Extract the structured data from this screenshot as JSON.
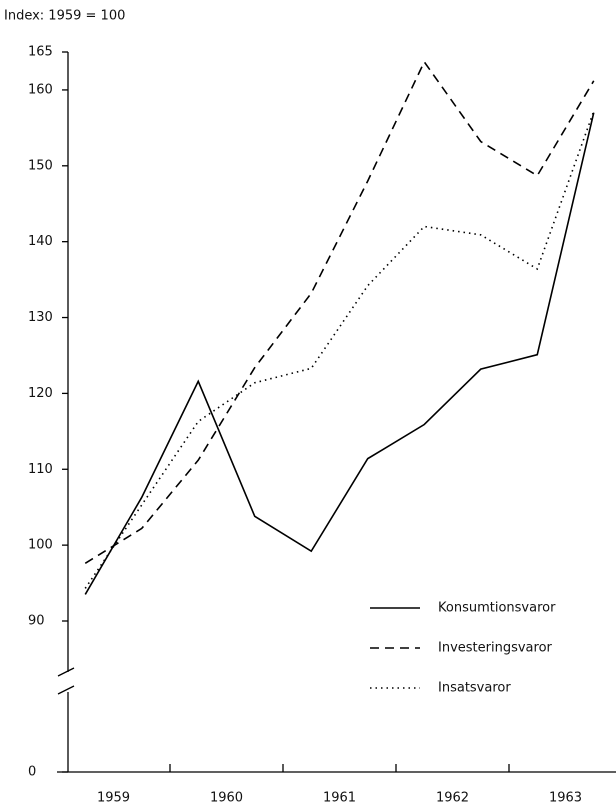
{
  "chart_data": {
    "type": "line",
    "title": "Index: 1959 = 100",
    "x": [
      1959.25,
      1959.75,
      1960.25,
      1960.75,
      1961.25,
      1961.75,
      1962.25,
      1962.75,
      1963.25,
      1963.75
    ],
    "xlim": [
      1959,
      1964
    ],
    "xticks": [
      {
        "value": 1959.5,
        "label": "1959"
      },
      {
        "value": 1960.5,
        "label": "1960"
      },
      {
        "value": 1961.5,
        "label": "1961"
      },
      {
        "value": 1962.5,
        "label": "1962"
      },
      {
        "value": 1963.5,
        "label": "1963"
      }
    ],
    "xtick_marks": [
      1960,
      1961,
      1962,
      1963
    ],
    "ylim": [
      0,
      165
    ],
    "yticks": [
      0,
      90,
      100,
      110,
      120,
      130,
      140,
      150,
      160,
      165
    ],
    "y_break": true,
    "legend": "lower right",
    "series": [
      {
        "name": "Konsumtionsvaror",
        "color": "#000000",
        "dash": "solid",
        "values": [
          93.5,
          106.3,
          121.6,
          103.8,
          99.2,
          111.4,
          115.9,
          123.2,
          125.1,
          157
        ]
      },
      {
        "name": "Investeringsvaror",
        "color": "#000000",
        "dash": "dashed",
        "values": [
          97.6,
          102.2,
          111.2,
          123.4,
          133.2,
          148,
          163.7,
          153.2,
          148.7,
          161.2
        ]
      },
      {
        "name": "Insatsvaror",
        "color": "#000000",
        "dash": "dotted",
        "values": [
          94.3,
          105.3,
          116.3,
          121.4,
          123.3,
          134.2,
          142,
          140.9,
          136.4,
          157.2
        ]
      }
    ]
  }
}
